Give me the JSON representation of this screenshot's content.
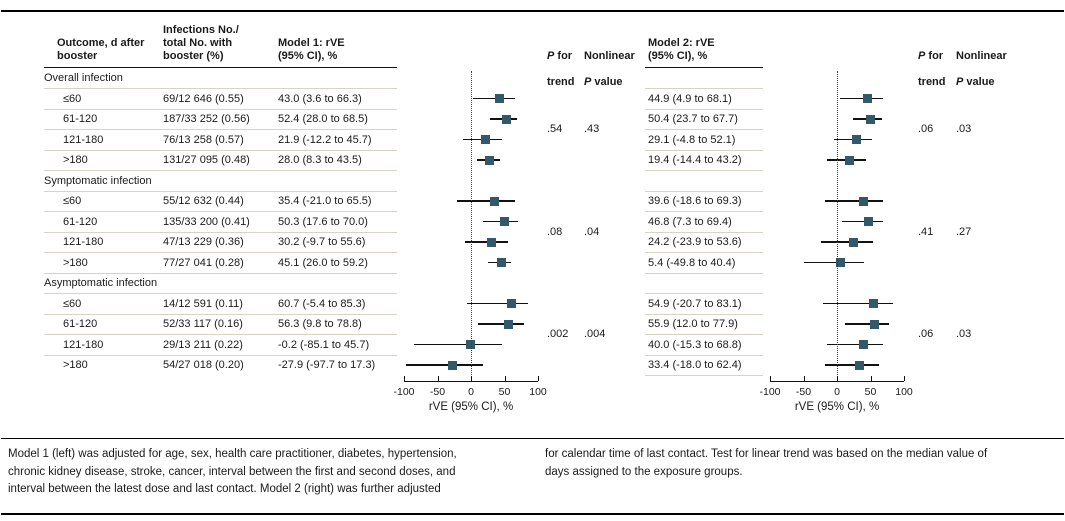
{
  "colors": {
    "marker": "#33586a",
    "separator": "#d7d3c6",
    "rule": "#000000",
    "text": "#1a1a1a"
  },
  "header": {
    "outcome": "Outcome, d after\nbooster",
    "infections": "Infections No./\ntotal No. with\nbooster (%)",
    "model1": "Model 1: rVE\n(95% CI), %",
    "model2": "Model 2: rVE\n(95% CI), %",
    "p": "P",
    "for_word": "for",
    "trend_word": "trend",
    "nonlinear_word": "Nonlinear",
    "value_word": "value"
  },
  "sections": [
    {
      "label": "Overall infection",
      "rows": [
        {
          "outcome": "≤60",
          "infections": "69/12 646 (0.55)",
          "m1": {
            "text": "43.0 (3.6 to 66.3)",
            "est": 43.0,
            "lo": 3.6,
            "hi": 66.3
          },
          "m2": {
            "text": "44.9 (4.9 to 68.1)",
            "est": 44.9,
            "lo": 4.9,
            "hi": 68.1
          }
        },
        {
          "outcome": "61-120",
          "infections": "187/33 252 (0.56)",
          "m1": {
            "text": "52.4 (28.0 to 68.5)",
            "est": 52.4,
            "lo": 28.0,
            "hi": 68.5
          },
          "m2": {
            "text": "50.4 (23.7 to 67.7)",
            "est": 50.4,
            "lo": 23.7,
            "hi": 67.7
          }
        },
        {
          "outcome": "121-180",
          "infections": "76/13 258 (0.57)",
          "m1": {
            "text": "21.9 (-12.2 to 45.7)",
            "est": 21.9,
            "lo": -12.2,
            "hi": 45.7
          },
          "m2": {
            "text": "29.1 (-4.8 to 52.1)",
            "est": 29.1,
            "lo": -4.8,
            "hi": 52.1
          }
        },
        {
          "outcome": ">180",
          "infections": "131/27 095 (0.48)",
          "m1": {
            "text": "28.0 (8.3 to 43.5)",
            "est": 28.0,
            "lo": 8.3,
            "hi": 43.5
          },
          "m2": {
            "text": "19.4 (-14.4 to 43.2)",
            "est": 19.4,
            "lo": -14.4,
            "hi": 43.2
          }
        }
      ],
      "m1_p_trend": ".54",
      "m1_p_nonlinear": ".43",
      "m2_p_trend": ".06",
      "m2_p_nonlinear": ".03"
    },
    {
      "label": "Symptomatic infection",
      "rows": [
        {
          "outcome": "≤60",
          "infections": "55/12 632 (0.44)",
          "m1": {
            "text": "35.4 (-21.0 to 65.5)",
            "est": 35.4,
            "lo": -21.0,
            "hi": 65.5
          },
          "m2": {
            "text": "39.6 (-18.6 to 69.3)",
            "est": 39.6,
            "lo": -18.6,
            "hi": 69.3
          }
        },
        {
          "outcome": "61-120",
          "infections": "135/33 200 (0.41)",
          "m1": {
            "text": "50.3 (17.6 to 70.0)",
            "est": 50.3,
            "lo": 17.6,
            "hi": 70.0
          },
          "m2": {
            "text": "46.8 (7.3 to 69.4)",
            "est": 46.8,
            "lo": 7.3,
            "hi": 69.4
          }
        },
        {
          "outcome": "121-180",
          "infections": "47/13 229 (0.36)",
          "m1": {
            "text": "30.2 (-9.7 to 55.6)",
            "est": 30.2,
            "lo": -9.7,
            "hi": 55.6
          },
          "m2": {
            "text": "24.2 (-23.9 to 53.6)",
            "est": 24.2,
            "lo": -23.9,
            "hi": 53.6
          }
        },
        {
          "outcome": ">180",
          "infections": "77/27 041 (0.28)",
          "m1": {
            "text": "45.1 (26.0 to 59.2)",
            "est": 45.1,
            "lo": 26.0,
            "hi": 59.2
          },
          "m2": {
            "text": "5.4 (-49.8 to 40.4)",
            "est": 5.4,
            "lo": -49.8,
            "hi": 40.4
          }
        }
      ],
      "m1_p_trend": ".08",
      "m1_p_nonlinear": ".04",
      "m2_p_trend": ".41",
      "m2_p_nonlinear": ".27"
    },
    {
      "label": "Asymptomatic infection",
      "rows": [
        {
          "outcome": "≤60",
          "infections": "14/12 591 (0.11)",
          "m1": {
            "text": "60.7 (-5.4 to 85.3)",
            "est": 60.7,
            "lo": -5.4,
            "hi": 85.3
          },
          "m2": {
            "text": "54.9 (-20.7 to 83.1)",
            "est": 54.9,
            "lo": -20.7,
            "hi": 83.1
          }
        },
        {
          "outcome": "61-120",
          "infections": "52/33 117 (0.16)",
          "m1": {
            "text": "56.3 (9.8 to 78.8)",
            "est": 56.3,
            "lo": 9.8,
            "hi": 78.8
          },
          "m2": {
            "text": "55.9 (12.0 to 77.9)",
            "est": 55.9,
            "lo": 12.0,
            "hi": 77.9
          }
        },
        {
          "outcome": "121-180",
          "infections": "29/13 211 (0.22)",
          "m1": {
            "text": "-0.2 (-85.1 to 45.7)",
            "est": -0.2,
            "lo": -85.1,
            "hi": 45.7
          },
          "m2": {
            "text": "40.0 (-15.3 to 68.8)",
            "est": 40.0,
            "lo": -15.3,
            "hi": 68.8
          }
        },
        {
          "outcome": ">180",
          "infections": "54/27 018 (0.20)",
          "m1": {
            "text": "-27.9 (-97.7 to 17.3)",
            "est": -27.9,
            "lo": -97.7,
            "hi": 17.3
          },
          "m2": {
            "text": "33.4 (-18.0 to 62.4)",
            "est": 33.4,
            "lo": -18.0,
            "hi": 62.4
          }
        }
      ],
      "m1_p_trend": ".002",
      "m1_p_nonlinear": ".004",
      "m2_p_trend": ".06",
      "m2_p_nonlinear": ".03"
    }
  ],
  "chart_data": [
    {
      "type": "forest",
      "title": "Model 1: rVE (95% CI), %",
      "xlabel": "rVE (95% CI), %",
      "xlim": [
        -100,
        100
      ],
      "xticks": [
        -100,
        -50,
        0,
        50,
        100
      ],
      "reference_line": 0,
      "points": [
        {
          "group": "Overall infection",
          "category": "≤60",
          "est": 43.0,
          "lo": 3.6,
          "hi": 66.3
        },
        {
          "group": "Overall infection",
          "category": "61-120",
          "est": 52.4,
          "lo": 28.0,
          "hi": 68.5
        },
        {
          "group": "Overall infection",
          "category": "121-180",
          "est": 21.9,
          "lo": -12.2,
          "hi": 45.7
        },
        {
          "group": "Overall infection",
          "category": ">180",
          "est": 28.0,
          "lo": 8.3,
          "hi": 43.5
        },
        {
          "group": "Symptomatic infection",
          "category": "≤60",
          "est": 35.4,
          "lo": -21.0,
          "hi": 65.5
        },
        {
          "group": "Symptomatic infection",
          "category": "61-120",
          "est": 50.3,
          "lo": 17.6,
          "hi": 70.0
        },
        {
          "group": "Symptomatic infection",
          "category": "121-180",
          "est": 30.2,
          "lo": -9.7,
          "hi": 55.6
        },
        {
          "group": "Symptomatic infection",
          "category": ">180",
          "est": 45.1,
          "lo": 26.0,
          "hi": 59.2
        },
        {
          "group": "Asymptomatic infection",
          "category": "≤60",
          "est": 60.7,
          "lo": -5.4,
          "hi": 85.3
        },
        {
          "group": "Asymptomatic infection",
          "category": "61-120",
          "est": 56.3,
          "lo": 9.8,
          "hi": 78.8
        },
        {
          "group": "Asymptomatic infection",
          "category": "121-180",
          "est": -0.2,
          "lo": -85.1,
          "hi": 45.7
        },
        {
          "group": "Asymptomatic infection",
          "category": ">180",
          "est": -27.9,
          "lo": -97.7,
          "hi": 17.3
        }
      ],
      "p_for_trend": [
        ".54",
        ".08",
        ".002"
      ],
      "nonlinear_p": [
        ".43",
        ".04",
        ".004"
      ]
    },
    {
      "type": "forest",
      "title": "Model 2: rVE (95% CI), %",
      "xlabel": "rVE (95% CI), %",
      "xlim": [
        -100,
        100
      ],
      "xticks": [
        -100,
        -50,
        0,
        50,
        100
      ],
      "reference_line": 0,
      "points": [
        {
          "group": "Overall infection",
          "category": "≤60",
          "est": 44.9,
          "lo": 4.9,
          "hi": 68.1
        },
        {
          "group": "Overall infection",
          "category": "61-120",
          "est": 50.4,
          "lo": 23.7,
          "hi": 67.7
        },
        {
          "group": "Overall infection",
          "category": "121-180",
          "est": 29.1,
          "lo": -4.8,
          "hi": 52.1
        },
        {
          "group": "Overall infection",
          "category": ">180",
          "est": 19.4,
          "lo": -14.4,
          "hi": 43.2
        },
        {
          "group": "Symptomatic infection",
          "category": "≤60",
          "est": 39.6,
          "lo": -18.6,
          "hi": 69.3
        },
        {
          "group": "Symptomatic infection",
          "category": "61-120",
          "est": 46.8,
          "lo": 7.3,
          "hi": 69.4
        },
        {
          "group": "Symptomatic infection",
          "category": "121-180",
          "est": 24.2,
          "lo": -23.9,
          "hi": 53.6
        },
        {
          "group": "Symptomatic infection",
          "category": ">180",
          "est": 5.4,
          "lo": -49.8,
          "hi": 40.4
        },
        {
          "group": "Asymptomatic infection",
          "category": "≤60",
          "est": 54.9,
          "lo": -20.7,
          "hi": 83.1
        },
        {
          "group": "Asymptomatic infection",
          "category": "61-120",
          "est": 55.9,
          "lo": 12.0,
          "hi": 77.9
        },
        {
          "group": "Asymptomatic infection",
          "category": "121-180",
          "est": 40.0,
          "lo": -15.3,
          "hi": 68.8
        },
        {
          "group": "Asymptomatic infection",
          "category": ">180",
          "est": 33.4,
          "lo": -18.0,
          "hi": 62.4
        }
      ],
      "p_for_trend": [
        ".06",
        ".41",
        ".06"
      ],
      "nonlinear_p": [
        ".03",
        ".27",
        ".03"
      ]
    }
  ],
  "footnote": {
    "left": "Model 1 (left) was adjusted for age, sex, health care practitioner, diabetes, hypertension,\nchronic kidney disease, stroke, cancer, interval between the first and second doses, and\ninterval between the latest dose and last contact. Model 2 (right) was further adjusted",
    "right": "for calendar time of last contact. Test for linear trend was based on the median value of\ndays assigned to the exposure groups."
  }
}
